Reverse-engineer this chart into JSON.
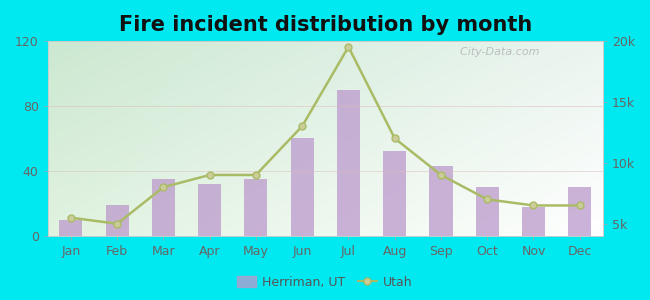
{
  "months": [
    "Jan",
    "Feb",
    "Mar",
    "Apr",
    "May",
    "Jun",
    "Jul",
    "Aug",
    "Sep",
    "Oct",
    "Nov",
    "Dec"
  ],
  "herriman_values": [
    10,
    19,
    35,
    32,
    35,
    60,
    90,
    52,
    43,
    30,
    18,
    30
  ],
  "utah_values": [
    5500,
    5000,
    8000,
    9000,
    9000,
    13000,
    19500,
    12000,
    9000,
    7000,
    6500,
    6500
  ],
  "bar_color": "#bb99cc",
  "bar_alpha": 0.75,
  "line_color": "#aabb66",
  "line_marker": "o",
  "line_marker_color": "#cccc99",
  "line_marker_size": 5,
  "title": "Fire incident distribution by month",
  "title_fontsize": 15,
  "left_ylim": [
    0,
    120
  ],
  "left_yticks": [
    0,
    40,
    80,
    120
  ],
  "right_ylim": [
    4000,
    20000
  ],
  "right_yticks": [
    5000,
    10000,
    15000,
    20000
  ],
  "right_yticklabels": [
    "5k",
    "10k",
    "15k",
    "20k"
  ],
  "outer_bg": "#00e8f0",
  "watermark_text": "  City-Data.com",
  "legend_herriman": "Herriman, UT",
  "legend_utah": "Utah",
  "grid_color": "#ddbbbb",
  "grid_alpha": 0.5
}
